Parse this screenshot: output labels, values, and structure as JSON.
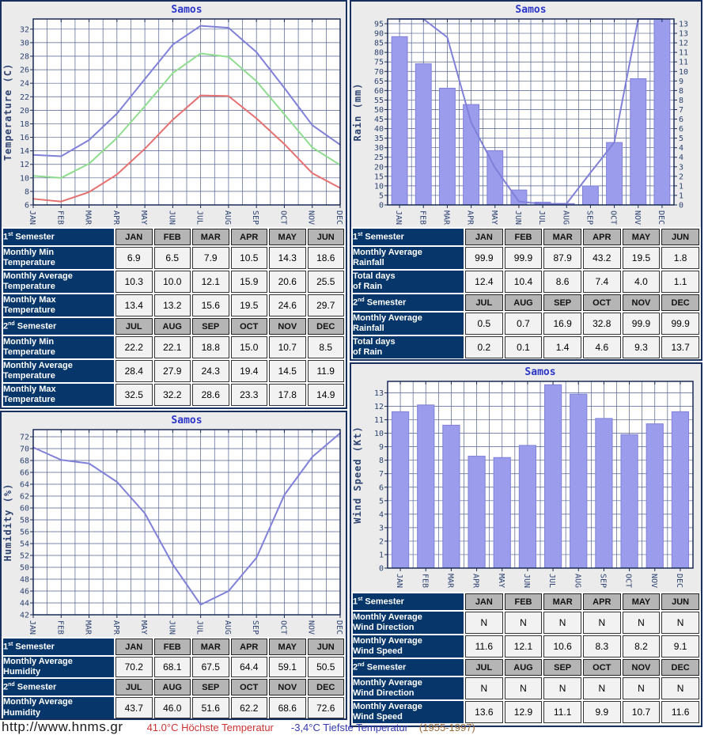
{
  "station": "Samos",
  "footer": {
    "url": "http://www.hnms.gr",
    "highest": "41.0°C Höchste Temperatur",
    "lowest": "-3,4°C Tiefste Temperatur",
    "period": "(1955-1997)"
  },
  "tables": {
    "temperature": {
      "sections": [
        {
          "header": {
            "num": "1",
            "ord": "st",
            "word": "Semester"
          },
          "months": [
            "JAN",
            "FEB",
            "MAR",
            "APR",
            "MAY",
            "JUN"
          ],
          "rows": [
            {
              "label": [
                "Monthly Min",
                "Temperature"
              ],
              "values": [
                "6.9",
                "6.5",
                "7.9",
                "10.5",
                "14.3",
                "18.6"
              ]
            },
            {
              "label": [
                "Monthly Average",
                "Temperature"
              ],
              "values": [
                "10.3",
                "10.0",
                "12.1",
                "15.9",
                "20.6",
                "25.5"
              ]
            },
            {
              "label": [
                "Monthly Max",
                "Temperature"
              ],
              "values": [
                "13.4",
                "13.2",
                "15.6",
                "19.5",
                "24.6",
                "29.7"
              ]
            }
          ]
        },
        {
          "header": {
            "num": "2",
            "ord": "nd",
            "word": "Semester"
          },
          "months": [
            "JUL",
            "AUG",
            "SEP",
            "OCT",
            "NOV",
            "DEC"
          ],
          "rows": [
            {
              "label": [
                "Monthly Min",
                "Temperature"
              ],
              "values": [
                "22.2",
                "22.1",
                "18.8",
                "15.0",
                "10.7",
                "8.5"
              ]
            },
            {
              "label": [
                "Monthly Average",
                "Temperature"
              ],
              "values": [
                "28.4",
                "27.9",
                "24.3",
                "19.4",
                "14.5",
                "11.9"
              ]
            },
            {
              "label": [
                "Monthly Max",
                "Temperature"
              ],
              "values": [
                "32.5",
                "32.2",
                "28.6",
                "23.3",
                "17.8",
                "14.9"
              ]
            }
          ]
        }
      ]
    },
    "rain": {
      "sections": [
        {
          "header": {
            "num": "1",
            "ord": "st",
            "word": "Semester"
          },
          "months": [
            "JAN",
            "FEB",
            "MAR",
            "APR",
            "MAY",
            "JUN"
          ],
          "rows": [
            {
              "label": [
                "Monthly Average",
                "Rainfall"
              ],
              "values": [
                "99.9",
                "99.9",
                "87.9",
                "43.2",
                "19.5",
                "1.8"
              ]
            },
            {
              "label": [
                "Total days",
                "of Rain"
              ],
              "values": [
                "12.4",
                "10.4",
                "8.6",
                "7.4",
                "4.0",
                "1.1"
              ]
            }
          ]
        },
        {
          "header": {
            "num": "2",
            "ord": "nd",
            "word": "Semester"
          },
          "months": [
            "JUL",
            "AUG",
            "SEP",
            "OCT",
            "NOV",
            "DEC"
          ],
          "rows": [
            {
              "label": [
                "Monthly Average",
                "Rainfall"
              ],
              "values": [
                "0.5",
                "0.7",
                "16.9",
                "32.8",
                "99.9",
                "99.9"
              ]
            },
            {
              "label": [
                "Total days",
                "of Rain"
              ],
              "values": [
                "0.2",
                "0.1",
                "1.4",
                "4.6",
                "9.3",
                "13.7"
              ]
            }
          ]
        }
      ]
    },
    "humidity": {
      "sections": [
        {
          "header": {
            "num": "1",
            "ord": "st",
            "word": "Semester"
          },
          "months": [
            "JAN",
            "FEB",
            "MAR",
            "APR",
            "MAY",
            "JUN"
          ],
          "rows": [
            {
              "label": [
                "Monthly Average",
                "Humidity"
              ],
              "values": [
                "70.2",
                "68.1",
                "67.5",
                "64.4",
                "59.1",
                "50.5"
              ]
            }
          ]
        },
        {
          "header": {
            "num": "2",
            "ord": "nd",
            "word": "Semester"
          },
          "months": [
            "JUL",
            "AUG",
            "SEP",
            "OCT",
            "NOV",
            "DEC"
          ],
          "rows": [
            {
              "label": [
                "Monthly Average",
                "Humidity"
              ],
              "values": [
                "43.7",
                "46.0",
                "51.6",
                "62.2",
                "68.6",
                "72.6"
              ]
            }
          ]
        }
      ]
    },
    "wind": {
      "sections": [
        {
          "header": {
            "num": "1",
            "ord": "st",
            "word": "Semester"
          },
          "months": [
            "JAN",
            "FEB",
            "MAR",
            "APR",
            "MAY",
            "JUN"
          ],
          "rows": [
            {
              "label": [
                "Monthly Average",
                "Wind Direction"
              ],
              "values": [
                "N",
                "N",
                "N",
                "N",
                "N",
                "N"
              ]
            },
            {
              "label": [
                "Monthly Average",
                "Wind Speed"
              ],
              "values": [
                "11.6",
                "12.1",
                "10.6",
                "8.3",
                "8.2",
                "9.1"
              ]
            }
          ]
        },
        {
          "header": {
            "num": "2",
            "ord": "nd",
            "word": "Semester"
          },
          "months": [
            "JUL",
            "AUG",
            "SEP",
            "OCT",
            "NOV",
            "DEC"
          ],
          "rows": [
            {
              "label": [
                "Monthly Average",
                "Wind Direction"
              ],
              "values": [
                "N",
                "N",
                "N",
                "N",
                "N",
                "N"
              ]
            },
            {
              "label": [
                "Monthly Average",
                "Wind Speed"
              ],
              "values": [
                "13.6",
                "12.9",
                "11.1",
                "9.9",
                "10.7",
                "11.6"
              ]
            }
          ]
        }
      ]
    }
  },
  "chart_data": [
    {
      "id": "temperature",
      "type": "line",
      "title": "Samos",
      "ylabel": "Temperature (C)",
      "categories": [
        "JAN",
        "FEB",
        "MAR",
        "APR",
        "MAY",
        "JUN",
        "JUL",
        "AUG",
        "SEP",
        "OCT",
        "NOV",
        "DEC"
      ],
      "x_mode": "edge",
      "ylim": [
        6,
        33.5
      ],
      "yticks": [
        6,
        8,
        10,
        12,
        14,
        16,
        18,
        20,
        22,
        24,
        26,
        28,
        30,
        32
      ],
      "grid": true,
      "series": [
        {
          "name": "Monthly Max Temperature",
          "color": "#8080d8",
          "values": [
            13.4,
            13.2,
            15.6,
            19.5,
            24.6,
            29.7,
            32.5,
            32.2,
            28.6,
            23.3,
            17.8,
            14.9
          ]
        },
        {
          "name": "Monthly Average Temperature",
          "color": "#8fdc8f",
          "values": [
            10.3,
            10.0,
            12.1,
            15.9,
            20.6,
            25.5,
            28.4,
            27.9,
            24.3,
            19.4,
            14.5,
            11.9
          ]
        },
        {
          "name": "Monthly Min Temperature",
          "color": "#e57070",
          "values": [
            6.9,
            6.5,
            7.9,
            10.5,
            14.3,
            18.6,
            22.2,
            22.1,
            18.8,
            15.0,
            10.7,
            8.5
          ]
        }
      ]
    },
    {
      "id": "rain",
      "type": "bar+line",
      "title": "Samos",
      "ylabel": "Rain (mm)",
      "categories": [
        "JAN",
        "FEB",
        "MAR",
        "APR",
        "MAY",
        "JUN",
        "JUL",
        "AUG",
        "SEP",
        "OCT",
        "NOV",
        "DEC"
      ],
      "x_mode": "center",
      "ylim": [
        0,
        97.5
      ],
      "yticks": [
        0,
        5,
        10,
        15,
        20,
        25,
        30,
        35,
        40,
        45,
        50,
        55,
        60,
        65,
        70,
        75,
        80,
        85,
        90,
        95
      ],
      "right_tick_labels": [
        "0",
        "1",
        "1",
        "2",
        "3",
        "4",
        "4",
        "5",
        "6",
        "6",
        "7",
        "8",
        "8",
        "9",
        "10",
        "11",
        "11",
        "12",
        "13",
        "13"
      ],
      "right_axis_max": 13.7,
      "grid": true,
      "bars": {
        "name": "Total days of Rain",
        "axis": "right",
        "color": "#9c9cec",
        "values": [
          12.4,
          10.4,
          8.6,
          7.4,
          4.0,
          1.1,
          0.2,
          0.1,
          1.4,
          4.6,
          9.3,
          13.7
        ]
      },
      "series": [
        {
          "name": "Monthly Average Rainfall",
          "color": "#8080d8",
          "values": [
            99.9,
            99.9,
            87.9,
            43.2,
            19.5,
            1.8,
            0.5,
            0.7,
            16.9,
            32.8,
            99.9,
            99.9
          ]
        }
      ]
    },
    {
      "id": "humidity",
      "type": "line",
      "title": "Samos",
      "ylabel": "Humidity (%)",
      "categories": [
        "JAN",
        "FEB",
        "MAR",
        "APR",
        "MAY",
        "JUN",
        "JUL",
        "AUG",
        "SEP",
        "OCT",
        "NOV",
        "DEC"
      ],
      "x_mode": "edge",
      "ylim": [
        42,
        73.2
      ],
      "yticks": [
        42,
        44,
        46,
        48,
        50,
        52,
        54,
        56,
        58,
        60,
        62,
        64,
        66,
        68,
        70,
        72
      ],
      "grid": true,
      "series": [
        {
          "name": "Monthly Average Humidity",
          "color": "#8080d8",
          "values": [
            70.2,
            68.1,
            67.5,
            64.4,
            59.1,
            50.5,
            43.7,
            46.0,
            51.6,
            62.2,
            68.6,
            72.6
          ]
        }
      ]
    },
    {
      "id": "wind",
      "type": "bar",
      "title": "Samos",
      "ylabel": "Wind Speed (Kt)",
      "categories": [
        "JAN",
        "FEB",
        "MAR",
        "APR",
        "MAY",
        "JUN",
        "JUL",
        "AUG",
        "SEP",
        "OCT",
        "NOV",
        "DEC"
      ],
      "x_mode": "center",
      "ylim": [
        0,
        13.85
      ],
      "yticks": [
        0,
        1,
        2,
        3,
        4,
        5,
        6,
        7,
        8,
        9,
        10,
        11,
        12,
        13
      ],
      "grid": true,
      "bars": {
        "name": "Monthly Average Wind Speed",
        "axis": "left",
        "color": "#9c9cec",
        "values": [
          11.6,
          12.1,
          10.6,
          8.3,
          8.2,
          9.1,
          13.6,
          12.9,
          11.1,
          9.9,
          10.7,
          11.6
        ]
      }
    }
  ]
}
